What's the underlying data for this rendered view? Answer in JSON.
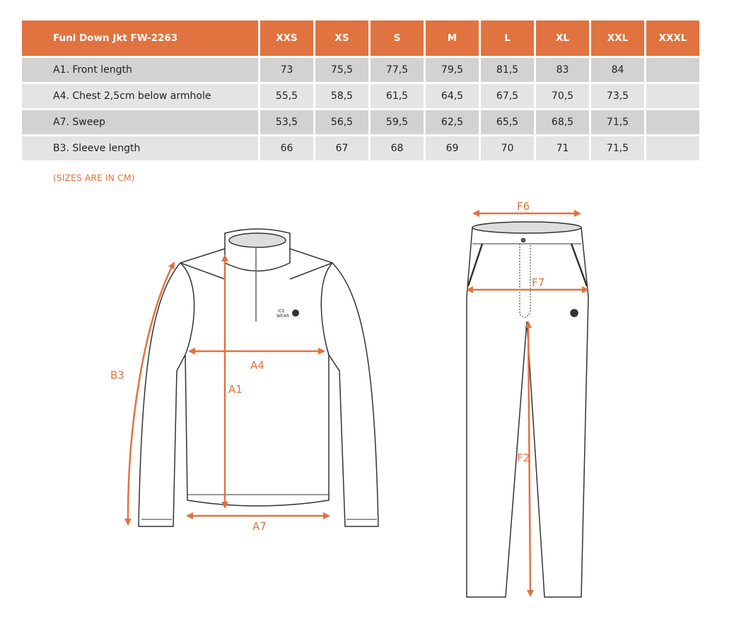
{
  "table": {
    "title": "Funi Down Jkt FW-2263",
    "sizes": [
      "XXS",
      "XS",
      "S",
      "M",
      "L",
      "XL",
      "XXL",
      "XXXL"
    ],
    "rows": [
      {
        "label": "A1. Front length",
        "values": [
          "73",
          "75,5",
          "77,5",
          "79,5",
          "81,5",
          "83",
          "84",
          ""
        ]
      },
      {
        "label": "A4. Chest 2,5cm below armhole",
        "values": [
          "55,5",
          "58,5",
          "61,5",
          "64,5",
          "67,5",
          "70,5",
          "73,5",
          ""
        ]
      },
      {
        "label": "A7. Sweep",
        "values": [
          "53,5",
          "56,5",
          "59,5",
          "62,5",
          "65,5",
          "68,5",
          "71,5",
          ""
        ]
      },
      {
        "label": "B3. Sleeve length",
        "values": [
          "66",
          "67",
          "68",
          "69",
          "70",
          "71",
          "71,5",
          ""
        ]
      }
    ]
  },
  "note": "(SIZES ARE IN CM)",
  "jacket_labels": {
    "b3": "B3",
    "a1": "A1",
    "a4": "A4",
    "a7": "A7"
  },
  "pants_labels": {
    "f6": "F6",
    "f7": "F7",
    "f2": "F2"
  },
  "logo": {
    "line1": "ICE",
    "line2": "WEAR"
  },
  "colors": {
    "accent": "#e07340",
    "row_dark": "#d3d2d0",
    "row_light": "#e5e4e2"
  }
}
